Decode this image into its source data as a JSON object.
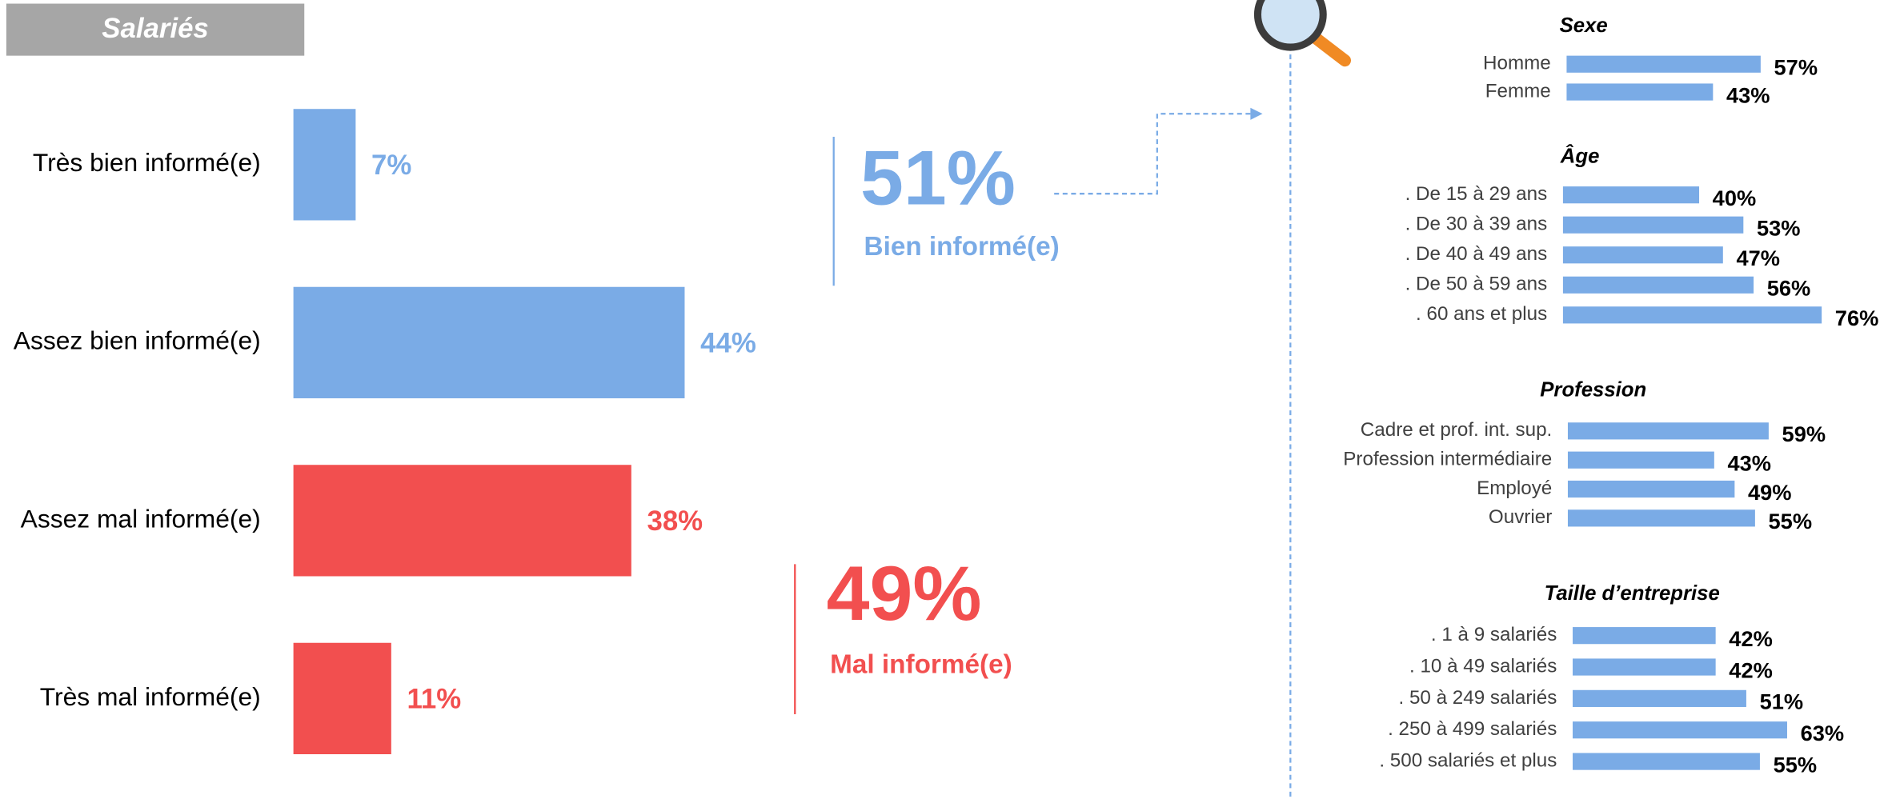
{
  "title": "Salariés",
  "chart_data": [
    {
      "type": "hbar",
      "categories": [
        "Très bien informé(e)",
        "Assez bien informé(e)",
        "Assez mal informé(e)",
        "Très mal informé(e)"
      ],
      "values": [
        7,
        44,
        38,
        11
      ],
      "value_labels": [
        "7%",
        "44%",
        "38%",
        "11%"
      ],
      "colors": [
        "#7aabe6",
        "#7aabe6",
        "#f24f4f",
        "#f24f4f"
      ]
    },
    {
      "type": "hbar",
      "title": "Sexe",
      "categories": [
        "Homme",
        "Femme"
      ],
      "values": [
        57,
        43
      ],
      "value_labels": [
        "57%",
        "43%"
      ],
      "color": "#7aabe6"
    },
    {
      "type": "hbar",
      "title": "Âge",
      "categories": [
        ". De 15 à 29 ans",
        ". De 30 à 39 ans",
        ". De 40 à 49 ans",
        ". De 50 à 59 ans",
        ". 60 ans et plus"
      ],
      "values": [
        40,
        53,
        47,
        56,
        76
      ],
      "value_labels": [
        "40%",
        "53%",
        "47%",
        "56%",
        "76%"
      ],
      "color": "#7aabe6"
    },
    {
      "type": "hbar",
      "title": "Profession",
      "categories": [
        "Cadre et prof. int. sup.",
        "Profession intermédiaire",
        "Employé",
        "Ouvrier"
      ],
      "values": [
        59,
        43,
        49,
        55
      ],
      "value_labels": [
        "59%",
        "43%",
        "49%",
        "55%"
      ],
      "color": "#7aabe6"
    },
    {
      "type": "hbar",
      "title": "Taille d’entreprise",
      "categories": [
        ". 1 à 9 salariés",
        ". 10 à 49 salariés",
        ". 50 à 249 salariés",
        ". 250 à 499 salariés",
        ". 500 salariés et plus"
      ],
      "values": [
        42,
        42,
        51,
        63,
        55
      ],
      "value_labels": [
        "42%",
        "42%",
        "51%",
        "63%",
        "55%"
      ],
      "color": "#7aabe6"
    }
  ],
  "summary": [
    {
      "value": 51,
      "label": "51%",
      "text": "Bien informé(e)",
      "color": "#7aabe6"
    },
    {
      "value": 49,
      "label": "49%",
      "text": "Mal informé(e)",
      "color": "#f24f4f"
    }
  ]
}
